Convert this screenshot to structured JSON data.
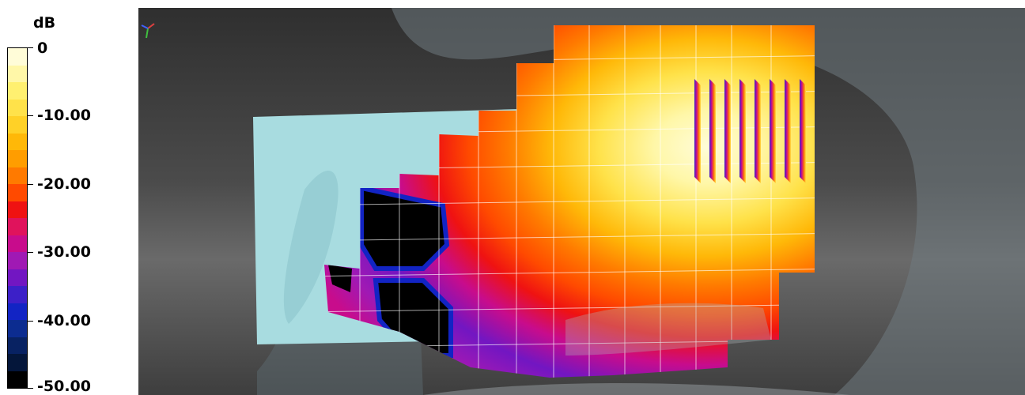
{
  "legend": {
    "unit": "dB",
    "labels": [
      "0",
      "-10.00",
      "-20.00",
      "-30.00",
      "-40.00",
      "-50.00"
    ],
    "range": [
      -50,
      0
    ],
    "colors_top_to_bottom": [
      "#fffcd8",
      "#fff7a8",
      "#fff070",
      "#ffe24a",
      "#ffd127",
      "#ffb808",
      "#ff9d00",
      "#ff7a00",
      "#ff4a00",
      "#ef1212",
      "#e0135c",
      "#c80c8c",
      "#a019b4",
      "#7216c2",
      "#3c20c8",
      "#1224c4",
      "#0c2c90",
      "#082262",
      "#04163a",
      "#000000"
    ]
  },
  "viewport": {
    "background": "#3b3b3b",
    "overlay_color": "#a8dce0",
    "grid_color": "#ffffff"
  },
  "axis_triad": {
    "x_color": "#e04040",
    "y_color": "#40c040",
    "z_color": "#4060ff"
  }
}
